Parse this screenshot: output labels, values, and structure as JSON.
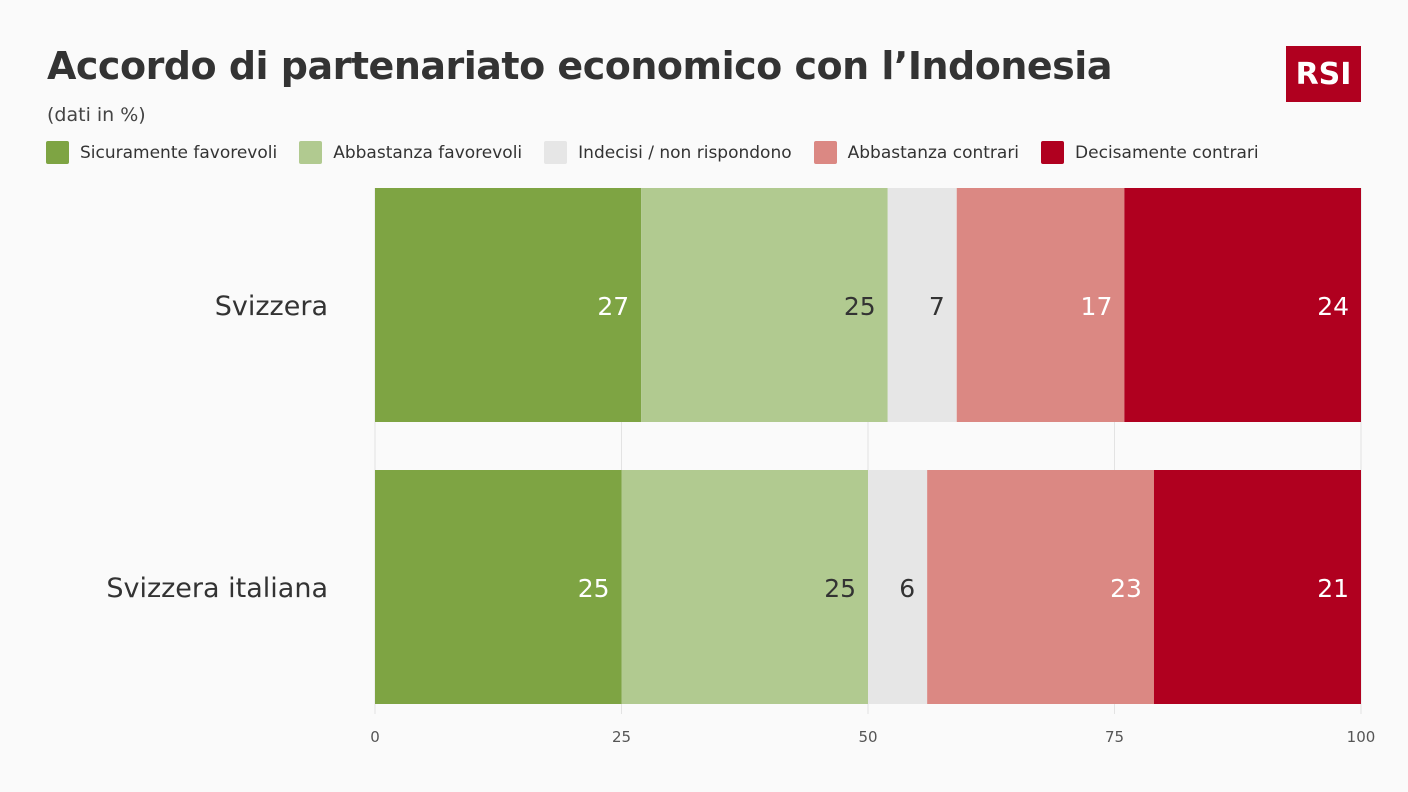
{
  "title": "Accordo di partenariato economico con l’Indonesia",
  "subtitle": "(dati in %)",
  "logo_text": "RSI",
  "legend": [
    {
      "label": "Sicuramente favorevoli",
      "color": "#7ea443"
    },
    {
      "label": "Abbastanza favorevoli",
      "color": "#b1ca90"
    },
    {
      "label": "Indecisi / non rispondono",
      "color": "#e6e6e6"
    },
    {
      "label": "Abbastanza contrari",
      "color": "#db8883"
    },
    {
      "label": "Decisamente contrari",
      "color": "#b0001f"
    }
  ],
  "chart_data": {
    "type": "bar",
    "orientation": "horizontal",
    "stacked": true,
    "categories": [
      "Svizzera",
      "Svizzera italiana"
    ],
    "series": [
      {
        "name": "Sicuramente favorevoli",
        "values": [
          27,
          25
        ],
        "color": "#7ea443",
        "label_color": "#ffffff"
      },
      {
        "name": "Abbastanza favorevoli",
        "values": [
          25,
          25
        ],
        "color": "#b1ca90",
        "label_color": "#333333"
      },
      {
        "name": "Indecisi / non rispondono",
        "values": [
          7,
          6
        ],
        "color": "#e6e6e6",
        "label_color": "#333333"
      },
      {
        "name": "Abbastanza contrari",
        "values": [
          17,
          23
        ],
        "color": "#db8883",
        "label_color": "#ffffff"
      },
      {
        "name": "Decisamente contrari",
        "values": [
          24,
          21
        ],
        "color": "#b0001f",
        "label_color": "#ffffff"
      }
    ],
    "xlim": [
      0,
      100
    ],
    "xticks": [
      0,
      25,
      50,
      75,
      100
    ],
    "grid": true,
    "legend_position": "top"
  }
}
